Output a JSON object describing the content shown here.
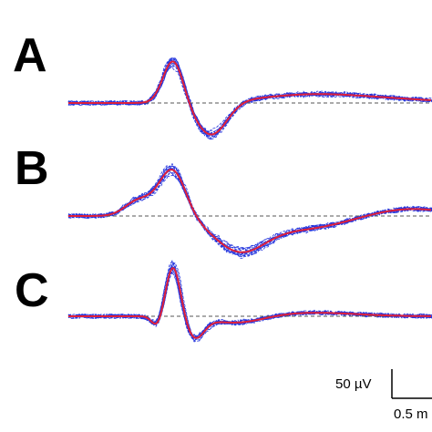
{
  "panels": [
    {
      "label": "A"
    },
    {
      "label": "B"
    },
    {
      "label": "C"
    }
  ],
  "scale_bar": {
    "vertical_label": "50 µV",
    "horizontal_label": "0.5 m"
  }
}
